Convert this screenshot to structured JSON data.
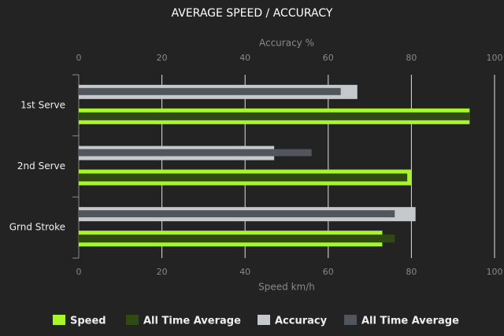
{
  "chart_data": {
    "type": "bar",
    "orientation": "horizontal",
    "title": "AVERAGE SPEED / ACCURACY",
    "categories": [
      "1st Serve",
      "2nd Serve",
      "Grnd Stroke"
    ],
    "xlabel": "Speed km/h",
    "x2label": "Accuracy %",
    "xlim": [
      0,
      100
    ],
    "xticks": [
      0,
      20,
      40,
      60,
      80,
      100
    ],
    "x2lim": [
      0,
      100
    ],
    "x2ticks": [
      0,
      20,
      40,
      60,
      80,
      100
    ],
    "grid": true,
    "legend": "bottom",
    "series": [
      {
        "name": "Speed",
        "color": "#a8f52a",
        "axis": "x",
        "values": [
          94,
          80,
          73
        ]
      },
      {
        "name": "All Time Average",
        "color": "#2f4a12",
        "axis": "x",
        "values": [
          94,
          79,
          76
        ]
      },
      {
        "name": "Accuracy",
        "color": "#c6c9cb",
        "axis": "x2",
        "values": [
          67,
          47,
          81
        ]
      },
      {
        "name": "All Time Average",
        "color": "#50565b",
        "axis": "x2",
        "values": [
          63,
          56,
          76
        ]
      }
    ]
  }
}
